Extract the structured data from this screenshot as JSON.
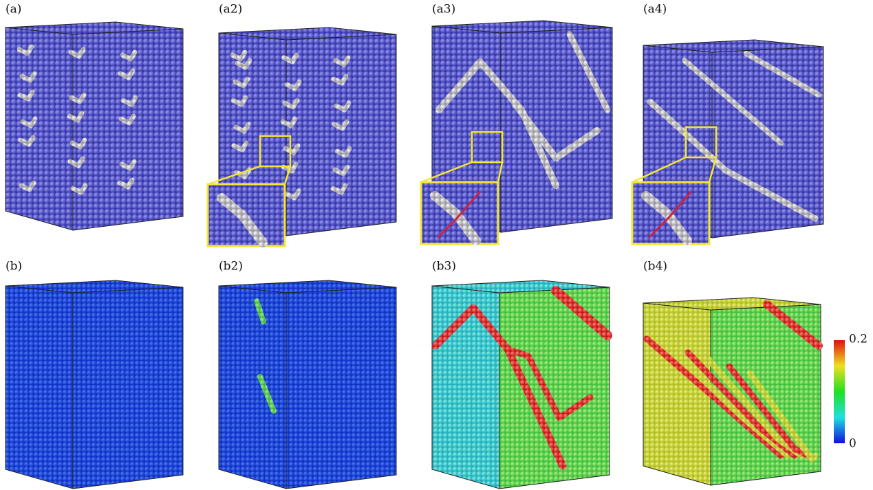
{
  "panels_top": [
    "(a)",
    "(a2)",
    "(a3)",
    "(a4)"
  ],
  "panels_bottom": [
    "(b)",
    "(b2)",
    "(b3)",
    "(b4)"
  ],
  "colorbar": {
    "max_label": "0.2",
    "min_label": "0"
  }
}
